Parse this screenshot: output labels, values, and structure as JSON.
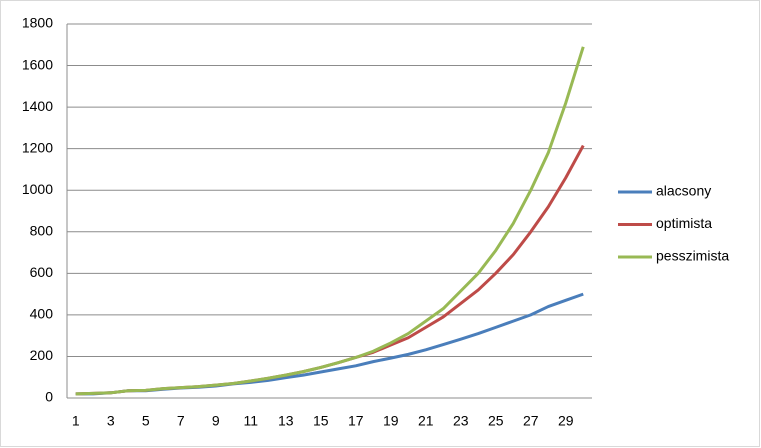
{
  "chart_data": {
    "type": "line",
    "categories": [
      1,
      null,
      3,
      null,
      5,
      null,
      7,
      null,
      9,
      null,
      11,
      null,
      13,
      null,
      15,
      null,
      17,
      null,
      19,
      null,
      21,
      null,
      23,
      null,
      25,
      null,
      27,
      null,
      29,
      null
    ],
    "series": [
      {
        "name": "alacsony",
        "color": "#4a7ebb",
        "values": [
          20,
          20,
          25,
          35,
          35,
          42,
          48,
          52,
          58,
          68,
          75,
          85,
          98,
          110,
          125,
          140,
          155,
          175,
          192,
          210,
          232,
          257,
          283,
          310,
          340,
          370,
          400,
          440,
          470,
          500
        ]
      },
      {
        "name": "optimista",
        "color": "#be4b48",
        "values": [
          20,
          22,
          25,
          35,
          37,
          45,
          50,
          55,
          62,
          70,
          82,
          95,
          110,
          127,
          147,
          170,
          195,
          220,
          255,
          290,
          340,
          390,
          455,
          520,
          600,
          690,
          800,
          920,
          1060,
          1215
        ]
      },
      {
        "name": "pesszimista",
        "color": "#98b954",
        "values": [
          20,
          22,
          25,
          35,
          37,
          45,
          50,
          55,
          62,
          70,
          82,
          95,
          110,
          127,
          147,
          170,
          195,
          225,
          265,
          310,
          370,
          430,
          515,
          600,
          710,
          840,
          1000,
          1180,
          1420,
          1690
        ]
      }
    ],
    "ylim": [
      0,
      1800
    ],
    "yticks": [
      0,
      200,
      400,
      600,
      800,
      1000,
      1200,
      1400,
      1600,
      1800
    ],
    "grid": true,
    "legend": "right"
  }
}
